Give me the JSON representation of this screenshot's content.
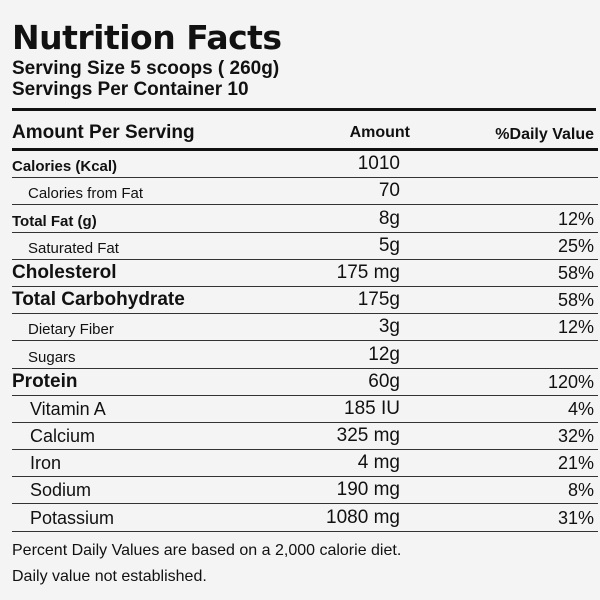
{
  "label": {
    "title": "Nutrition Facts",
    "serving_size_label": "Serving Size",
    "serving_size_value": "5 scoops ( 260g)",
    "servings_per_container_label": "Servings Per Container",
    "servings_per_container_value": "10"
  },
  "table": {
    "header": {
      "name": "Amount Per Serving",
      "amount": "Amount",
      "daily_value": "%Daily Value"
    },
    "rows": [
      {
        "name": "Calories (Kcal)",
        "amount": "1010",
        "daily_value": "",
        "level": "bold-sm"
      },
      {
        "name": "Calories from Fat",
        "amount": "70",
        "daily_value": "",
        "level": "sub"
      },
      {
        "name": "Total Fat (g)",
        "amount": "8g",
        "daily_value": "12%",
        "level": "bold-sm"
      },
      {
        "name": "Saturated Fat",
        "amount": "5g",
        "daily_value": "25%",
        "level": "sub"
      },
      {
        "name": "Cholesterol",
        "amount": "175 mg",
        "daily_value": "58%",
        "level": "bold-lg"
      },
      {
        "name": "Total Carbohydrate",
        "amount": "175g",
        "daily_value": "58%",
        "level": "bold-lg"
      },
      {
        "name": "Dietary Fiber",
        "amount": "3g",
        "daily_value": "12%",
        "level": "sub"
      },
      {
        "name": "Sugars",
        "amount": "12g",
        "daily_value": "",
        "level": "sub"
      },
      {
        "name": "Protein",
        "amount": "60g",
        "daily_value": "120%",
        "level": "bold-lg"
      },
      {
        "name": "Vitamin A",
        "amount": "185 IU",
        "daily_value": "4%",
        "level": "vit"
      },
      {
        "name": "Calcium",
        "amount": "325 mg",
        "daily_value": "32%",
        "level": "vit"
      },
      {
        "name": "Iron",
        "amount": "4 mg",
        "daily_value": "21%",
        "level": "vit"
      },
      {
        "name": "Sodium",
        "amount": "190 mg",
        "daily_value": "8%",
        "level": "vit"
      },
      {
        "name": "Potassium",
        "amount": "1080 mg",
        "daily_value": "31%",
        "level": "vit"
      }
    ]
  },
  "footer": {
    "note_1": "Percent Daily Values are based on a 2,000 calorie diet.",
    "note_2": "Daily value not established."
  }
}
